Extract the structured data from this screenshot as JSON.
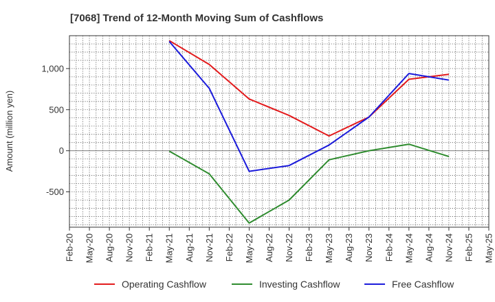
{
  "chart_data": {
    "type": "line",
    "title": "[7068]  Trend of 12-Month Moving Sum of Cashflows",
    "xlabel": "",
    "ylabel": "Amount (million yen)",
    "categories": [
      "Feb-20",
      "May-20",
      "Aug-20",
      "Nov-20",
      "Feb-21",
      "May-21",
      "Aug-21",
      "Nov-21",
      "Feb-22",
      "May-22",
      "Aug-22",
      "Nov-22",
      "Feb-23",
      "May-23",
      "Aug-23",
      "Nov-23",
      "Feb-24",
      "May-24",
      "Aug-24",
      "Nov-24",
      "Feb-25",
      "May-25"
    ],
    "ylim": [
      -930,
      1400
    ],
    "yticks": [
      -500,
      0,
      500,
      1000
    ],
    "ytick_labels": [
      "-500",
      "0",
      "500",
      "1,000"
    ],
    "grid": true,
    "legend_position": "bottom",
    "series": [
      {
        "name": "Operating Cashflow",
        "color": "#e31a1c",
        "points": [
          {
            "x": "May-21",
            "y": 1340
          },
          {
            "x": "Nov-21",
            "y": 1050
          },
          {
            "x": "May-22",
            "y": 630
          },
          {
            "x": "Nov-22",
            "y": 430
          },
          {
            "x": "May-23",
            "y": 180
          },
          {
            "x": "Nov-23",
            "y": 410
          },
          {
            "x": "May-24",
            "y": 870
          },
          {
            "x": "Nov-24",
            "y": 930
          }
        ]
      },
      {
        "name": "Investing Cashflow",
        "color": "#2e8b2e",
        "points": [
          {
            "x": "May-21",
            "y": -5
          },
          {
            "x": "Nov-21",
            "y": -280
          },
          {
            "x": "May-22",
            "y": -880
          },
          {
            "x": "Nov-22",
            "y": -600
          },
          {
            "x": "May-23",
            "y": -110
          },
          {
            "x": "Nov-23",
            "y": 0
          },
          {
            "x": "May-24",
            "y": 80
          },
          {
            "x": "Nov-24",
            "y": -70
          }
        ]
      },
      {
        "name": "Free Cashflow",
        "color": "#1a1adb",
        "points": [
          {
            "x": "May-21",
            "y": 1330
          },
          {
            "x": "Nov-21",
            "y": 760
          },
          {
            "x": "May-22",
            "y": -250
          },
          {
            "x": "Nov-22",
            "y": -180
          },
          {
            "x": "May-23",
            "y": 70
          },
          {
            "x": "Nov-23",
            "y": 410
          },
          {
            "x": "May-24",
            "y": 940
          },
          {
            "x": "Nov-24",
            "y": 860
          }
        ]
      }
    ]
  }
}
